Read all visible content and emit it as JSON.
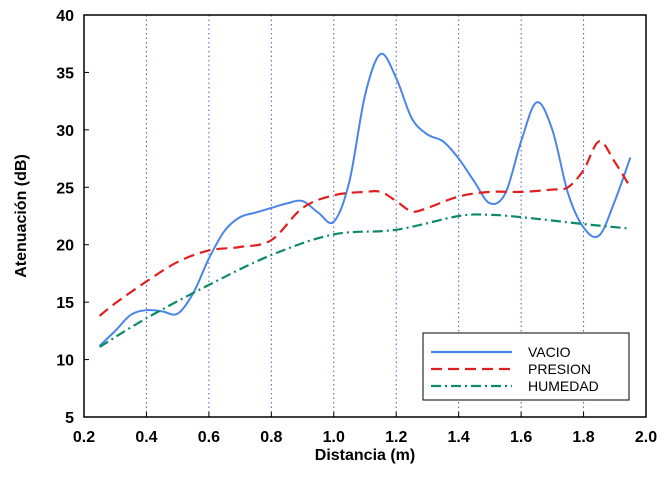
{
  "chart_data": {
    "type": "line",
    "title": "",
    "xlabel": "Distancia (m)",
    "ylabel": "Atenuación (dB)",
    "xlim": [
      0.2,
      2.0
    ],
    "ylim": [
      5,
      40
    ],
    "xticks": [
      "0.2",
      "0.4",
      "0.6",
      "0.8",
      "1.0",
      "1.2",
      "1.4",
      "1.6",
      "1.8",
      "2.0"
    ],
    "yticks": [
      "5",
      "10",
      "15",
      "20",
      "25",
      "30",
      "35",
      "40"
    ],
    "grid": "vertical dotted",
    "legend_position": "bottom-right",
    "series": [
      {
        "name": "VACIO",
        "color": "#4a86e8",
        "dash": "solid",
        "x": [
          0.25,
          0.3,
          0.35,
          0.4,
          0.45,
          0.5,
          0.55,
          0.6,
          0.65,
          0.7,
          0.75,
          0.8,
          0.85,
          0.9,
          0.95,
          1.0,
          1.05,
          1.1,
          1.15,
          1.2,
          1.25,
          1.3,
          1.35,
          1.4,
          1.45,
          1.5,
          1.55,
          1.6,
          1.65,
          1.7,
          1.75,
          1.8,
          1.85,
          1.9,
          1.95
        ],
        "y": [
          11.2,
          12.5,
          13.9,
          14.3,
          14.2,
          14.0,
          15.8,
          18.8,
          21.2,
          22.4,
          22.8,
          23.2,
          23.6,
          23.8,
          22.8,
          22.0,
          25.5,
          33.0,
          36.6,
          34.5,
          31.0,
          29.6,
          29.0,
          27.5,
          25.5,
          23.6,
          24.5,
          29.0,
          32.4,
          30.0,
          24.5,
          21.5,
          20.8,
          23.8,
          27.6
        ]
      },
      {
        "name": "PRESION",
        "color": "#e02020",
        "dash": "dashed",
        "x": [
          0.25,
          0.3,
          0.4,
          0.5,
          0.6,
          0.7,
          0.8,
          0.9,
          1.0,
          1.1,
          1.15,
          1.2,
          1.25,
          1.3,
          1.4,
          1.5,
          1.6,
          1.7,
          1.75,
          1.8,
          1.85,
          1.9,
          1.95
        ],
        "y": [
          13.8,
          14.9,
          16.8,
          18.5,
          19.5,
          19.8,
          20.4,
          23.2,
          24.3,
          24.6,
          24.6,
          23.8,
          22.9,
          23.2,
          24.2,
          24.6,
          24.6,
          24.8,
          25.0,
          26.5,
          29.0,
          27.2,
          25.0
        ]
      },
      {
        "name": "HUMEDAD",
        "color": "#0d8a6a",
        "dash": "dashdot",
        "x": [
          0.25,
          0.4,
          0.6,
          0.8,
          1.0,
          1.2,
          1.4,
          1.5,
          1.6,
          1.8,
          1.95
        ],
        "y": [
          11.1,
          13.6,
          16.5,
          19.1,
          20.9,
          21.3,
          22.5,
          22.6,
          22.4,
          21.8,
          21.4
        ]
      }
    ]
  }
}
